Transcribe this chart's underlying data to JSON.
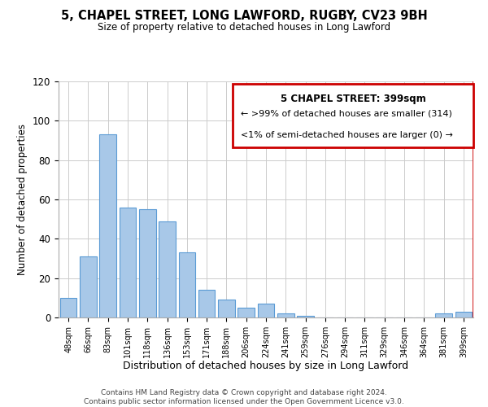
{
  "title": "5, CHAPEL STREET, LONG LAWFORD, RUGBY, CV23 9BH",
  "subtitle": "Size of property relative to detached houses in Long Lawford",
  "xlabel": "Distribution of detached houses by size in Long Lawford",
  "ylabel": "Number of detached properties",
  "bins": [
    "48sqm",
    "66sqm",
    "83sqm",
    "101sqm",
    "118sqm",
    "136sqm",
    "153sqm",
    "171sqm",
    "188sqm",
    "206sqm",
    "224sqm",
    "241sqm",
    "259sqm",
    "276sqm",
    "294sqm",
    "311sqm",
    "329sqm",
    "346sqm",
    "364sqm",
    "381sqm",
    "399sqm"
  ],
  "values": [
    10,
    31,
    93,
    56,
    55,
    49,
    33,
    14,
    9,
    5,
    7,
    2,
    1,
    0,
    0,
    0,
    0,
    0,
    0,
    2,
    3
  ],
  "bar_color": "#a8c8e8",
  "bar_edge_color": "#5b9bd5",
  "red_box_color": "#cc0000",
  "legend_title": "5 CHAPEL STREET: 399sqm",
  "legend_line1": "← >99% of detached houses are smaller (314)",
  "legend_line2": "<1% of semi-detached houses are larger (0) →",
  "ylim": [
    0,
    120
  ],
  "yticks": [
    0,
    20,
    40,
    60,
    80,
    100,
    120
  ],
  "footnote1": "Contains HM Land Registry data © Crown copyright and database right 2024.",
  "footnote2": "Contains public sector information licensed under the Open Government Licence v3.0.",
  "background_color": "#ffffff",
  "grid_color": "#cccccc"
}
